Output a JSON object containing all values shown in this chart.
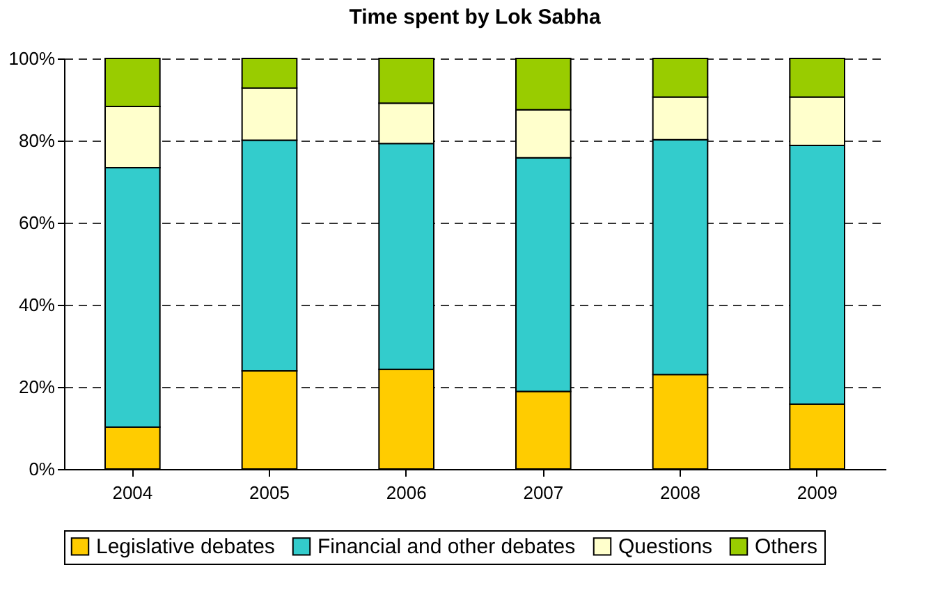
{
  "chart_data": {
    "type": "bar",
    "title": "Time spent by Lok Sabha",
    "stacked": true,
    "categories": [
      "2004",
      "2005",
      "2006",
      "2007",
      "2008",
      "2009"
    ],
    "series": [
      {
        "name": "Legislative debates",
        "color": "#ffcc00",
        "values": [
          10.2,
          23.9,
          24.3,
          18.9,
          23,
          15.8
        ]
      },
      {
        "name": "Financial and other debates",
        "color": "#33cccc",
        "values": [
          63.2,
          56.2,
          55,
          56.9,
          57.2,
          63
        ]
      },
      {
        "name": "Questions",
        "color": "#ffffcc",
        "values": [
          14.9,
          12.7,
          9.8,
          11.7,
          10.4,
          11.8
        ]
      },
      {
        "name": "Others",
        "color": "#99cc00",
        "values": [
          11.7,
          7.2,
          10.9,
          12.5,
          9.4,
          9.4
        ]
      }
    ],
    "ylim": [
      0,
      100
    ],
    "yticks": [
      {
        "value": 0,
        "label": "0%"
      },
      {
        "value": 20,
        "label": "20%"
      },
      {
        "value": 40,
        "label": "40%"
      },
      {
        "value": 60,
        "label": "60%"
      },
      {
        "value": 80,
        "label": "80%"
      },
      {
        "value": 100,
        "label": "100%"
      }
    ],
    "grid": "y",
    "legend": "bottom"
  }
}
